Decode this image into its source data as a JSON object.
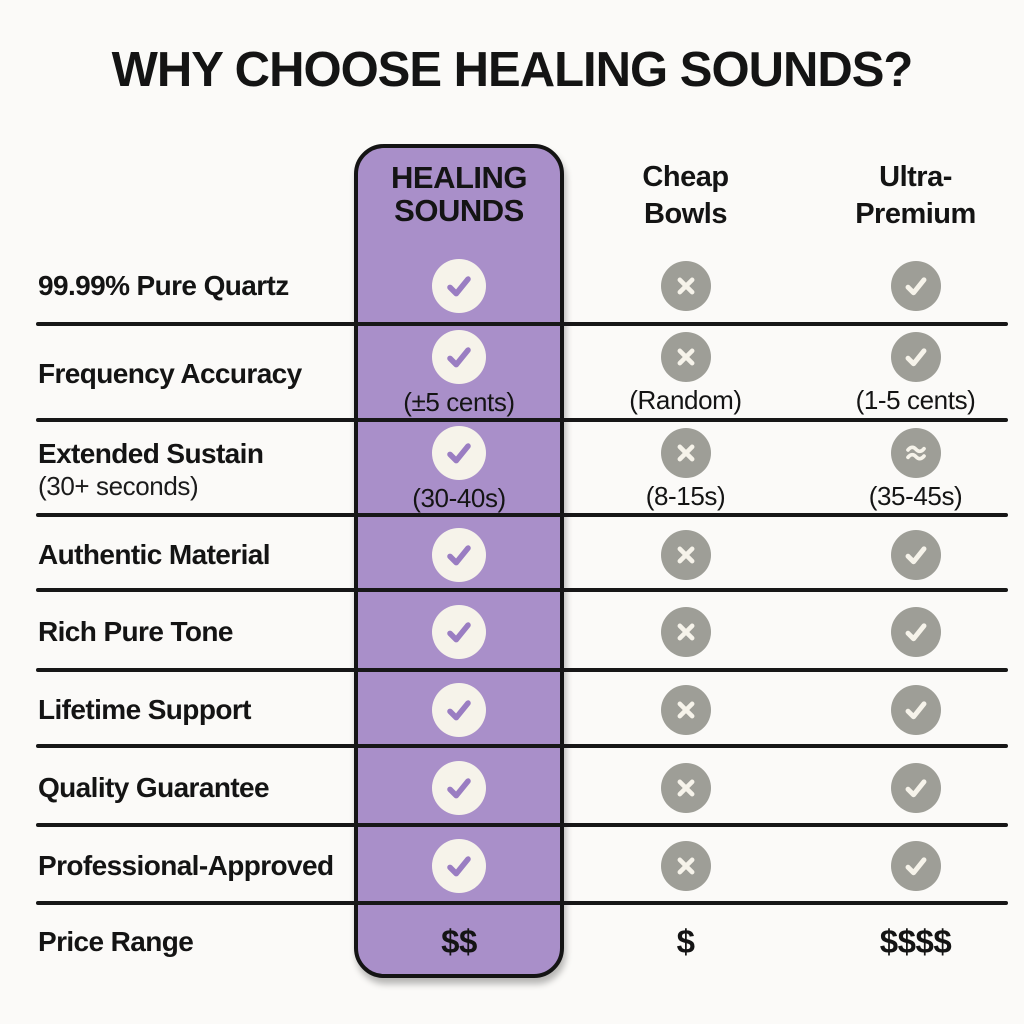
{
  "title": "WHY CHOOSE HEALING SOUNDS?",
  "columns": {
    "feature": {
      "label": ""
    },
    "healing": {
      "line1": "HEALING",
      "line2": "SOUNDS",
      "highlighted": true
    },
    "cheap": {
      "line1": "Cheap",
      "line2": "Bowls"
    },
    "ultra": {
      "line1": "Ultra-",
      "line2": "Premium"
    }
  },
  "rows": [
    {
      "label": "99.99% Pure Quartz",
      "sublabel": "",
      "cells": [
        {
          "icon": "check"
        },
        {
          "icon": "cross"
        },
        {
          "icon": "check"
        }
      ]
    },
    {
      "label": "Frequency Accuracy",
      "sublabel": "",
      "cells": [
        {
          "icon": "check",
          "note": "(±5 cents)"
        },
        {
          "icon": "cross",
          "note": "(Random)"
        },
        {
          "icon": "check",
          "note": "(1-5 cents)"
        }
      ]
    },
    {
      "label": "Extended Sustain",
      "sublabel": "(30+ seconds)",
      "cells": [
        {
          "icon": "check",
          "note": "(30-40s)"
        },
        {
          "icon": "cross",
          "note": "(8-15s)"
        },
        {
          "icon": "approx",
          "note": "(35-45s)"
        }
      ]
    },
    {
      "label": "Authentic Material",
      "sublabel": "",
      "cells": [
        {
          "icon": "check"
        },
        {
          "icon": "cross"
        },
        {
          "icon": "check"
        }
      ]
    },
    {
      "label": "Rich Pure Tone",
      "sublabel": "",
      "cells": [
        {
          "icon": "check"
        },
        {
          "icon": "cross"
        },
        {
          "icon": "check"
        }
      ]
    },
    {
      "label": "Lifetime Support",
      "sublabel": "",
      "cells": [
        {
          "icon": "check"
        },
        {
          "icon": "cross"
        },
        {
          "icon": "check"
        }
      ]
    },
    {
      "label": "Quality Guarantee",
      "sublabel": "",
      "cells": [
        {
          "icon": "check"
        },
        {
          "icon": "cross"
        },
        {
          "icon": "check"
        }
      ]
    },
    {
      "label": "Professional-Approved",
      "sublabel": "",
      "cells": [
        {
          "icon": "check"
        },
        {
          "icon": "cross"
        },
        {
          "icon": "check"
        }
      ]
    },
    {
      "label": "Price Range",
      "sublabel": "",
      "cells": [
        {
          "text": "$$"
        },
        {
          "text": "$"
        },
        {
          "text": "$$$$"
        }
      ]
    }
  ],
  "colors": {
    "background": "#fbfaf8",
    "accent_purple": "#a98fc9",
    "check_purple": "#9a7dc2",
    "cream": "#f6f3ea",
    "gray": "#9e9e97",
    "text": "#161616",
    "line": "#171717"
  },
  "chart_data": {
    "type": "table",
    "title": "WHY CHOOSE HEALING SOUNDS?",
    "columns": [
      "Feature",
      "HEALING SOUNDS",
      "Cheap Bowls",
      "Ultra-Premium"
    ],
    "rows": [
      [
        "99.99% Pure Quartz",
        "yes",
        "no",
        "yes"
      ],
      [
        "Frequency Accuracy",
        "yes (±5 cents)",
        "no (Random)",
        "yes (1-5 cents)"
      ],
      [
        "Extended Sustain (30+ seconds)",
        "yes (30-40s)",
        "no (8-15s)",
        "approx (35-45s)"
      ],
      [
        "Authentic Material",
        "yes",
        "no",
        "yes"
      ],
      [
        "Rich Pure Tone",
        "yes",
        "no",
        "yes"
      ],
      [
        "Lifetime Support",
        "yes",
        "no",
        "yes"
      ],
      [
        "Quality Guarantee",
        "yes",
        "no",
        "yes"
      ],
      [
        "Professional-Approved",
        "yes",
        "no",
        "yes"
      ],
      [
        "Price Range",
        "$$",
        "$",
        "$$$$"
      ]
    ],
    "legend_position": "none",
    "grid": "horizontal-lines"
  }
}
